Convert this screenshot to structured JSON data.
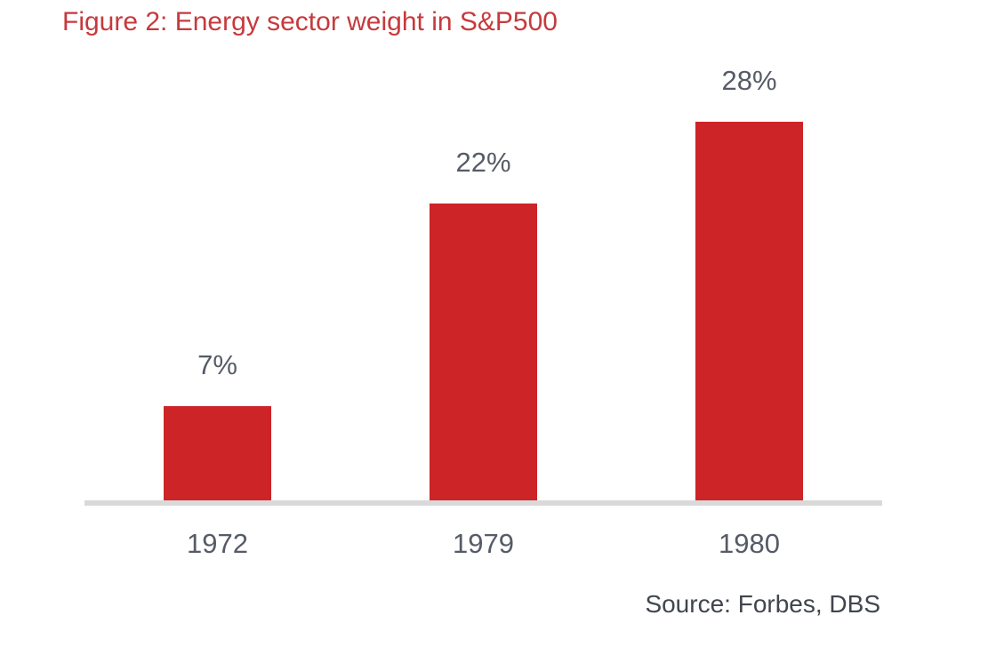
{
  "title": "Figure 2: Energy sector weight in S&P500",
  "source": "Source: Forbes, DBS",
  "colors": {
    "bar": "#cc2427",
    "title": "#c63a3d",
    "label": "#565b66",
    "axis": "#d9d9d9"
  },
  "chart_data": {
    "type": "bar",
    "title": "Figure 2: Energy sector weight in S&P500",
    "categories": [
      "1972",
      "1979",
      "1980"
    ],
    "values": [
      7,
      22,
      28
    ],
    "data_labels": [
      "7%",
      "22%",
      "28%"
    ],
    "xlabel": "",
    "ylabel": "",
    "ylim": [
      0,
      30
    ],
    "grid": false,
    "legend": false,
    "bar_color": "#cc2427",
    "source": "Source: Forbes, DBS"
  }
}
